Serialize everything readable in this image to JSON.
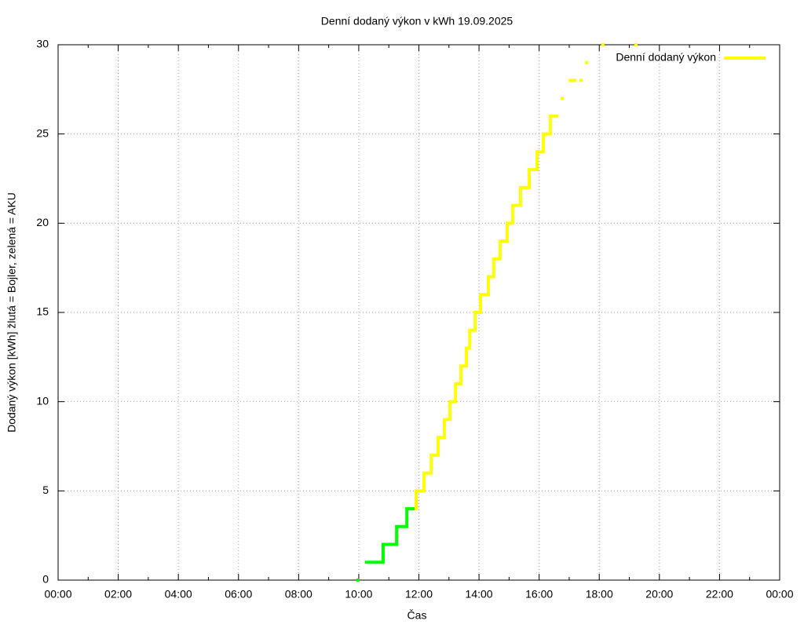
{
  "chart_data": {
    "type": "line",
    "steps": true,
    "title": "Denní dodaný výkon v kWh 19.09.2025",
    "x_label": "Čas",
    "y_label": "Dodaný výkon [kWh]  žlutá = Bojler, zelená = AKU",
    "xlim": [
      0,
      24
    ],
    "xticks": [
      {
        "value": 0,
        "label": "00:00"
      },
      {
        "value": 2,
        "label": "02:00"
      },
      {
        "value": 4,
        "label": "04:00"
      },
      {
        "value": 6,
        "label": "06:00"
      },
      {
        "value": 8,
        "label": "08:00"
      },
      {
        "value": 10,
        "label": "10:00"
      },
      {
        "value": 12,
        "label": "12:00"
      },
      {
        "value": 14,
        "label": "14:00"
      },
      {
        "value": 16,
        "label": "16:00"
      },
      {
        "value": 18,
        "label": "18:00"
      },
      {
        "value": 20,
        "label": "20:00"
      },
      {
        "value": 22,
        "label": "22:00"
      },
      {
        "value": 24,
        "label": "00:00"
      }
    ],
    "xminorticks": [
      1,
      3,
      5,
      7,
      9,
      11,
      13,
      15,
      17,
      19,
      21,
      23
    ],
    "ylim": [
      0,
      30
    ],
    "yticks": [
      0,
      5,
      10,
      15,
      20,
      25,
      30
    ],
    "grid": true,
    "legend": "top-right",
    "series": [
      {
        "color": "#00ff00",
        "x": [
          9.97,
          10.1,
          10.21,
          10.81,
          11.26,
          11.6,
          11.86
        ],
        "values": [
          0,
          null,
          1,
          2,
          3,
          4,
          4
        ]
      },
      {
        "name": "Denní dodaný výkon",
        "color": "#ffff00",
        "x": [
          11.86,
          11.91,
          12.17,
          12.41,
          12.64,
          12.85,
          13.03,
          13.22,
          13.4,
          13.58,
          13.69,
          13.87,
          14.05,
          14.31,
          14.49,
          14.7,
          14.94,
          15.12,
          15.38,
          15.67,
          15.93,
          16.14,
          16.37,
          16.64,
          16.7,
          16.77,
          16.85,
          16.98,
          17.24,
          17.3,
          17.39,
          17.48,
          17.58,
          17.8,
          18.12,
          18.6,
          19.22
        ],
        "values": [
          4,
          5,
          6,
          7,
          8,
          9,
          10,
          11,
          12,
          13,
          14,
          15,
          16,
          17,
          18,
          19,
          20,
          21,
          22,
          23,
          24,
          25,
          26,
          26,
          null,
          27,
          null,
          28,
          28,
          null,
          28,
          null,
          29,
          null,
          30,
          null,
          30
        ]
      }
    ]
  }
}
